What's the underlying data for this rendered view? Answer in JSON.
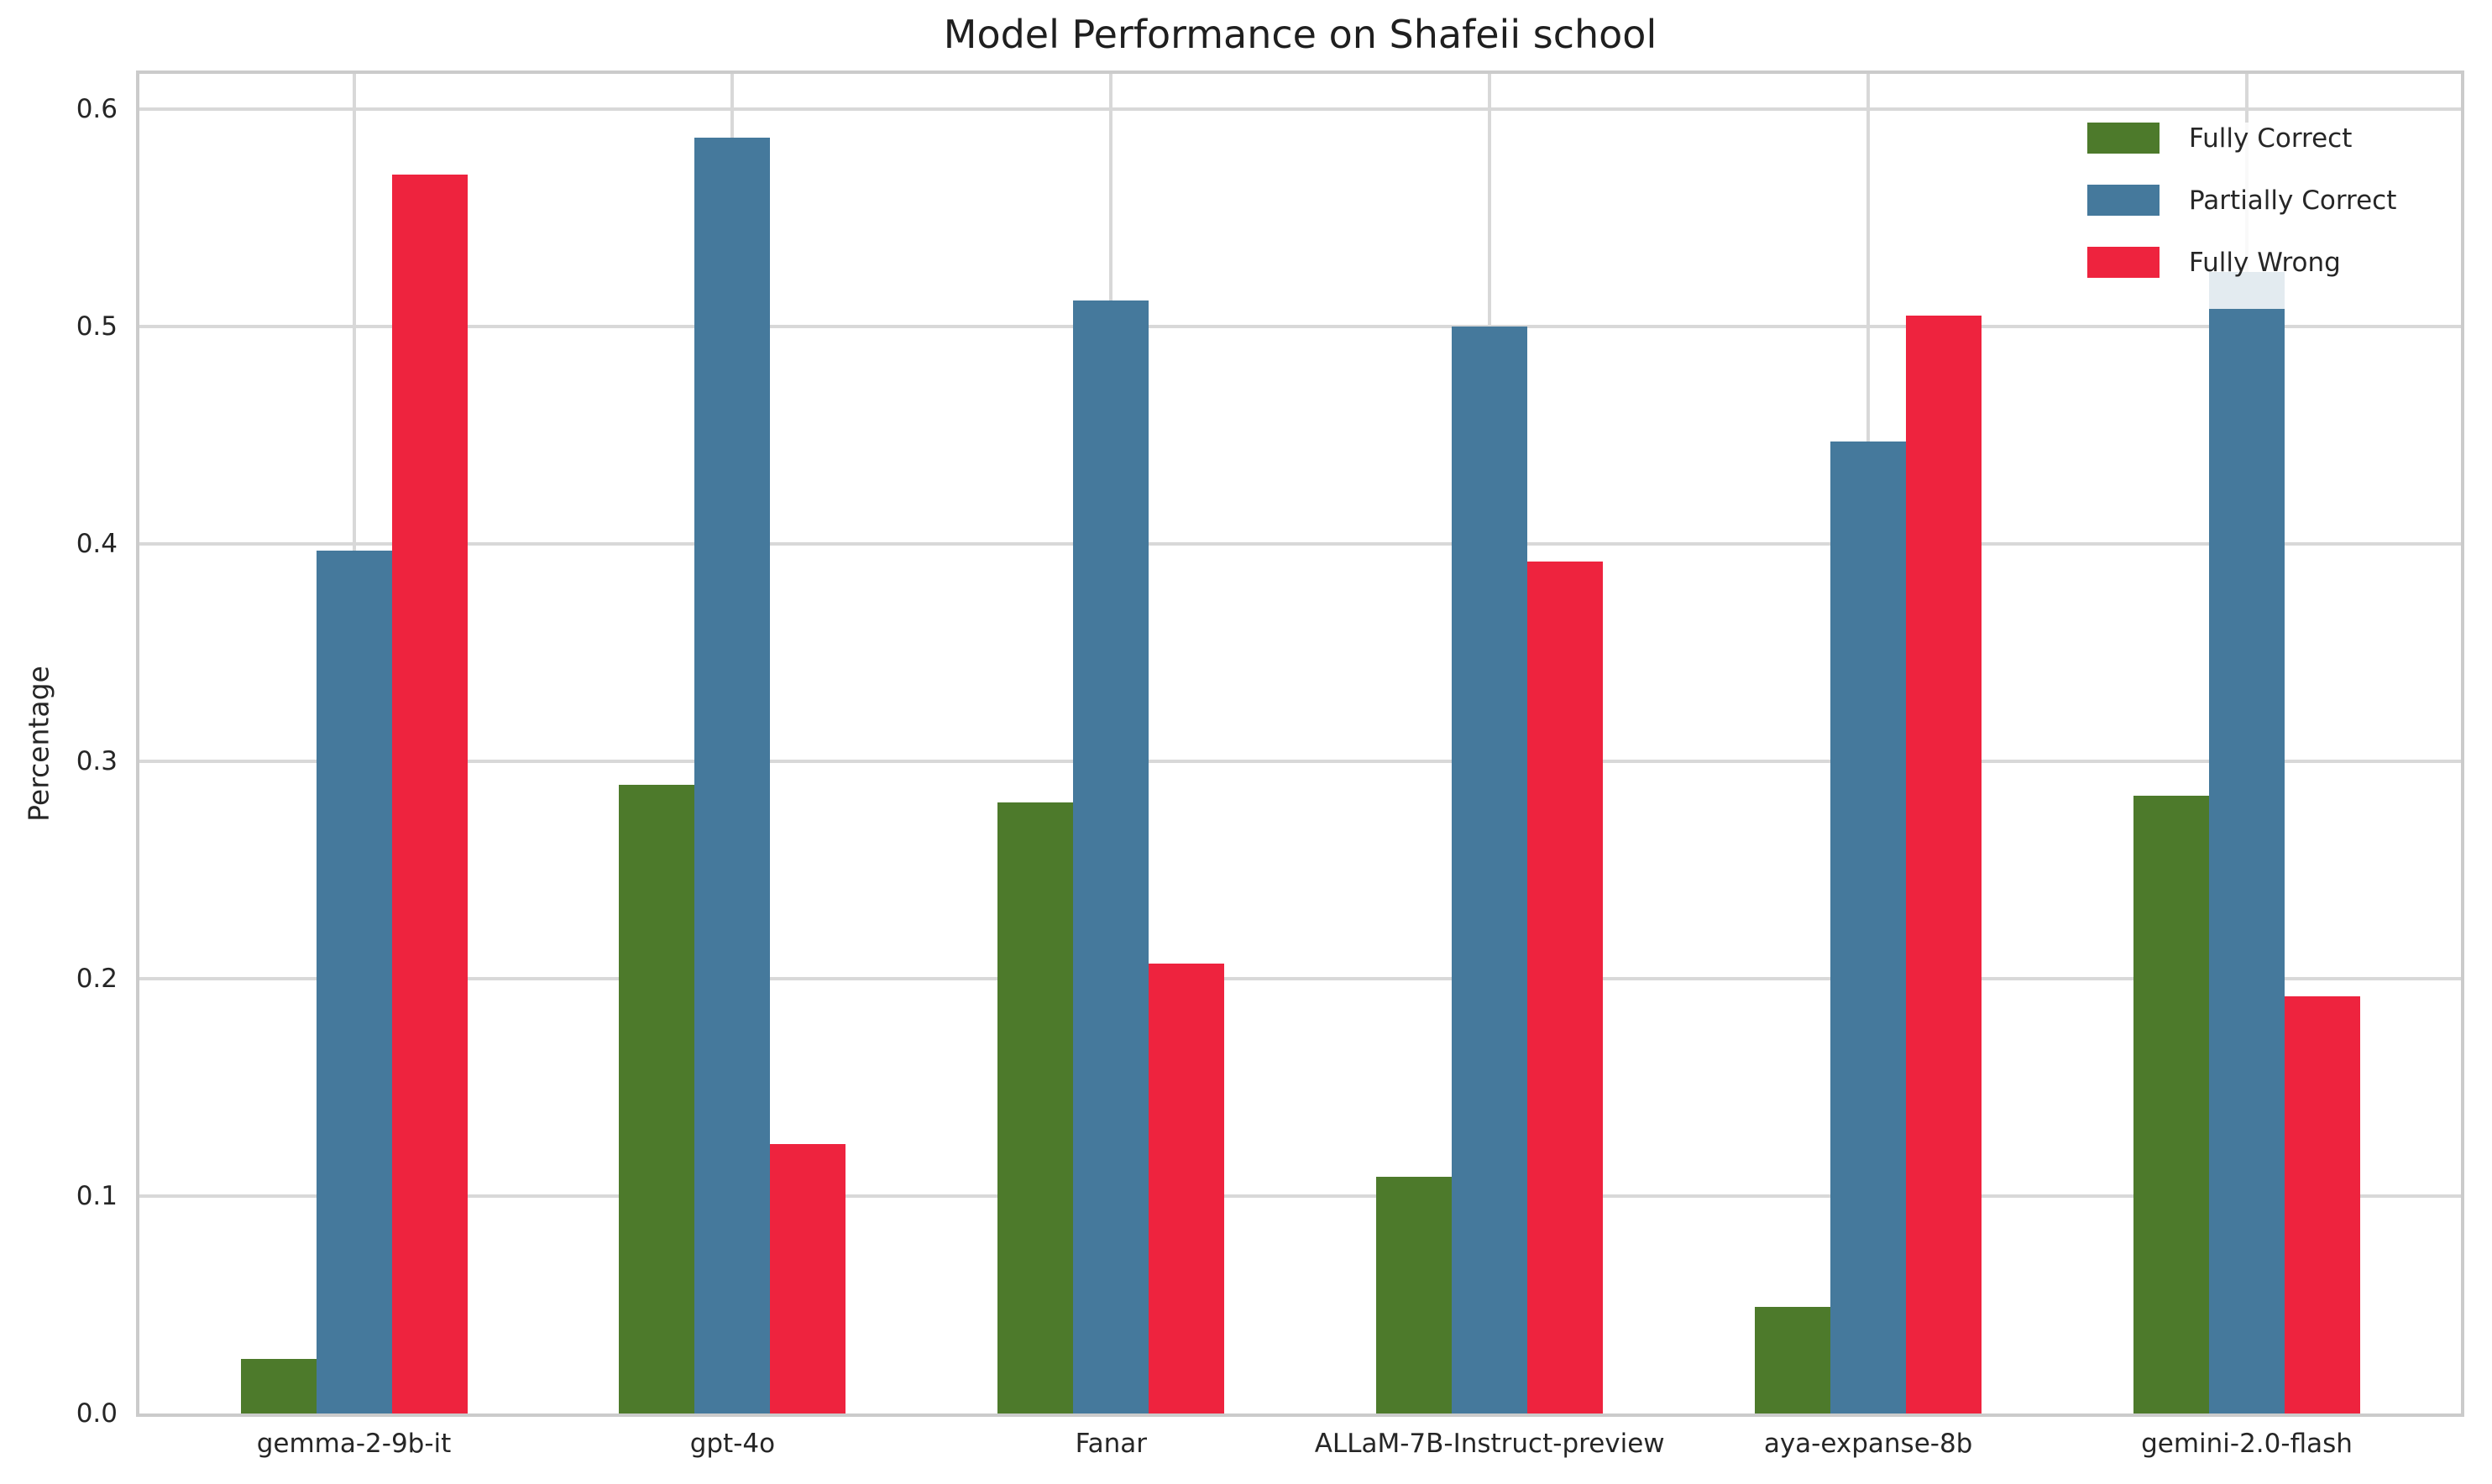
{
  "figure": {
    "title": "Model Performance on Shafeii school"
  },
  "chart_data": {
    "type": "bar",
    "title": "Model Performance on Shafeii school",
    "xlabel": "",
    "ylabel": "Percentage",
    "categories": [
      "gemma-2-9b-it",
      "gpt-4o",
      "Fanar",
      "ALLaM-7B-Instruct-preview",
      "aya-expanse-8b",
      "gemini-2.0-flash"
    ],
    "series": [
      {
        "name": "Fully Correct",
        "color": "#4D7A2B",
        "values": [
          0.025,
          0.289,
          0.281,
          0.109,
          0.049,
          0.284
        ]
      },
      {
        "name": "Partially Correct",
        "color": "#45799C",
        "values": [
          0.397,
          0.587,
          0.512,
          0.5,
          0.447,
          0.525
        ]
      },
      {
        "name": "Fully Wrong",
        "color": "#EE233E",
        "values": [
          0.57,
          0.124,
          0.207,
          0.392,
          0.505,
          0.192
        ]
      }
    ],
    "ylim": [
      0.0,
      0.616
    ],
    "yticks": [
      0.0,
      0.1,
      0.2,
      0.3,
      0.4,
      0.5,
      0.6
    ],
    "ytick_labels": [
      "0.0",
      "0.1",
      "0.2",
      "0.3",
      "0.4",
      "0.5",
      "0.6"
    ],
    "grid": true,
    "legend_position": "upper right",
    "grid_color": "#d8d8d8",
    "spine_color": "#cbcbcb",
    "text_color": "#262626"
  }
}
